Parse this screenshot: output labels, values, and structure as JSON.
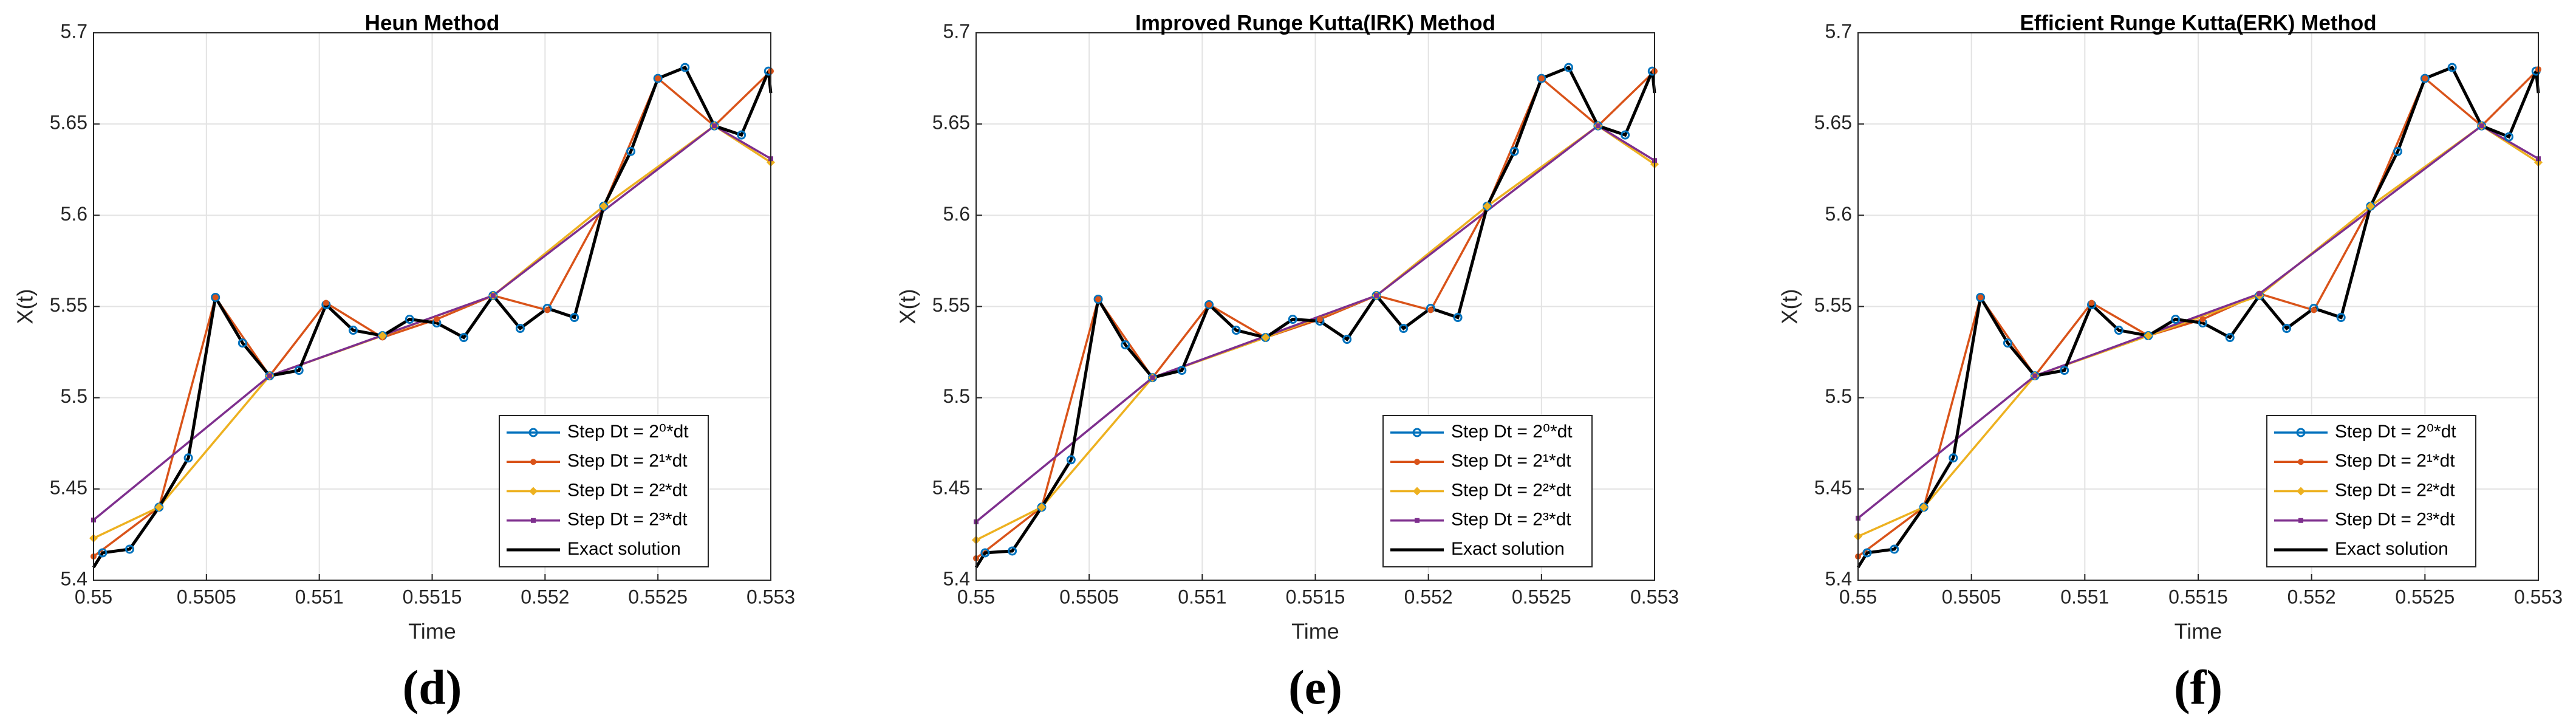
{
  "chart_data": [
    {
      "type": "line",
      "title": "Heun Method",
      "label": "(d)",
      "xlabel": "Time",
      "ylabel": "X(t)",
      "xlim": [
        0.55,
        0.553
      ],
      "xticks": [
        0.55,
        0.5505,
        0.551,
        0.5515,
        0.552,
        0.5525,
        0.553
      ],
      "ylim": [
        5.4,
        5.7
      ],
      "yticks": [
        5.4,
        5.45,
        5.5,
        5.55,
        5.6,
        5.65,
        5.7
      ],
      "grid": true,
      "legend": "southeast",
      "series": [
        {
          "name": "Step Dt = 2⁰*dt",
          "color": "#0072BD",
          "marker": "circle",
          "x": [
            0.55004,
            0.55016,
            0.55029,
            0.55042,
            0.55054,
            0.55066,
            0.55078,
            0.55091,
            0.55103,
            0.55115,
            0.55128,
            0.5514,
            0.55152,
            0.55164,
            0.55177,
            0.55189,
            0.55201,
            0.55213,
            0.55226,
            0.55238,
            0.5525,
            0.55262,
            0.55275,
            0.55287,
            0.55299
          ],
          "values": [
            5.415,
            5.417,
            5.44,
            5.467,
            5.555,
            5.53,
            5.512,
            5.515,
            5.551,
            5.537,
            5.534,
            5.543,
            5.541,
            5.533,
            5.556,
            5.538,
            5.549,
            5.544,
            5.605,
            5.635,
            5.675,
            5.681,
            5.649,
            5.644,
            5.679
          ]
        },
        {
          "name": "Step Dt = 2¹*dt",
          "color": "#D95319",
          "marker": "dot",
          "x": [
            0.55,
            0.55029,
            0.55054,
            0.55078,
            0.55103,
            0.55128,
            0.55152,
            0.55177,
            0.55201,
            0.55226,
            0.5525,
            0.55275,
            0.553
          ],
          "values": [
            5.413,
            5.44,
            5.555,
            5.512,
            5.552,
            5.533,
            5.543,
            5.556,
            5.548,
            5.605,
            5.675,
            5.649,
            5.679
          ]
        },
        {
          "name": "Step Dt = 2²*dt",
          "color": "#EDB120",
          "marker": "diamond",
          "x": [
            0.55,
            0.55029,
            0.55078,
            0.55128,
            0.55177,
            0.55226,
            0.55275,
            0.553
          ],
          "values": [
            5.423,
            5.44,
            5.512,
            5.534,
            5.556,
            5.605,
            5.649,
            5.629
          ]
        },
        {
          "name": "Step Dt = 2³*dt",
          "color": "#7E2F8E",
          "marker": "square",
          "x": [
            0.55,
            0.55078,
            0.55177,
            0.55275,
            0.553
          ],
          "values": [
            5.433,
            5.512,
            5.556,
            5.649,
            5.631
          ]
        },
        {
          "name": "Exact solution",
          "color": "#000000",
          "marker": "none",
          "x": [
            0.55,
            0.55004,
            0.55016,
            0.55029,
            0.55042,
            0.55054,
            0.55066,
            0.55078,
            0.55091,
            0.55103,
            0.55115,
            0.55128,
            0.5514,
            0.55152,
            0.55164,
            0.55177,
            0.55189,
            0.55201,
            0.55213,
            0.55226,
            0.55238,
            0.5525,
            0.55262,
            0.55275,
            0.55287,
            0.55299,
            0.553
          ],
          "values": [
            5.407,
            5.415,
            5.417,
            5.44,
            5.467,
            5.555,
            5.53,
            5.512,
            5.515,
            5.551,
            5.537,
            5.534,
            5.543,
            5.541,
            5.533,
            5.556,
            5.538,
            5.549,
            5.544,
            5.605,
            5.635,
            5.675,
            5.681,
            5.649,
            5.644,
            5.679,
            5.667
          ]
        }
      ]
    },
    {
      "type": "line",
      "title": "Improved Runge Kutta(IRK) Method",
      "label": "(e)",
      "xlabel": "Time",
      "ylabel": "X(t)",
      "xlim": [
        0.55,
        0.553
      ],
      "xticks": [
        0.55,
        0.5505,
        0.551,
        0.5515,
        0.552,
        0.5525,
        0.553
      ],
      "ylim": [
        5.4,
        5.7
      ],
      "yticks": [
        5.4,
        5.45,
        5.5,
        5.55,
        5.6,
        5.65,
        5.7
      ],
      "grid": true,
      "legend": "southeast",
      "series": [
        {
          "name": "Step Dt = 2⁰*dt",
          "color": "#0072BD",
          "marker": "circle",
          "x": [
            0.55004,
            0.55016,
            0.55029,
            0.55042,
            0.55054,
            0.55066,
            0.55078,
            0.55091,
            0.55103,
            0.55115,
            0.55128,
            0.5514,
            0.55152,
            0.55164,
            0.55177,
            0.55189,
            0.55201,
            0.55213,
            0.55226,
            0.55238,
            0.5525,
            0.55262,
            0.55275,
            0.55287,
            0.55299
          ],
          "values": [
            5.415,
            5.416,
            5.44,
            5.466,
            5.554,
            5.529,
            5.511,
            5.515,
            5.551,
            5.537,
            5.533,
            5.543,
            5.542,
            5.532,
            5.556,
            5.538,
            5.549,
            5.544,
            5.605,
            5.635,
            5.675,
            5.681,
            5.649,
            5.644,
            5.679
          ]
        },
        {
          "name": "Step Dt = 2¹*dt",
          "color": "#D95319",
          "marker": "dot",
          "x": [
            0.55,
            0.55029,
            0.55054,
            0.55078,
            0.55103,
            0.55128,
            0.55152,
            0.55177,
            0.55201,
            0.55226,
            0.5525,
            0.55275,
            0.553
          ],
          "values": [
            5.412,
            5.44,
            5.554,
            5.511,
            5.551,
            5.533,
            5.543,
            5.556,
            5.548,
            5.605,
            5.675,
            5.649,
            5.679
          ]
        },
        {
          "name": "Step Dt = 2²*dt",
          "color": "#EDB120",
          "marker": "diamond",
          "x": [
            0.55,
            0.55029,
            0.55078,
            0.55128,
            0.55177,
            0.55226,
            0.55275,
            0.553
          ],
          "values": [
            5.422,
            5.44,
            5.511,
            5.533,
            5.556,
            5.605,
            5.649,
            5.628
          ]
        },
        {
          "name": "Step Dt = 2³*dt",
          "color": "#7E2F8E",
          "marker": "square",
          "x": [
            0.55,
            0.55078,
            0.55177,
            0.55275,
            0.553
          ],
          "values": [
            5.432,
            5.511,
            5.556,
            5.649,
            5.63
          ]
        },
        {
          "name": "Exact solution",
          "color": "#000000",
          "marker": "none",
          "x": [
            0.55,
            0.55004,
            0.55016,
            0.55029,
            0.55042,
            0.55054,
            0.55066,
            0.55078,
            0.55091,
            0.55103,
            0.55115,
            0.55128,
            0.5514,
            0.55152,
            0.55164,
            0.55177,
            0.55189,
            0.55201,
            0.55213,
            0.55226,
            0.55238,
            0.5525,
            0.55262,
            0.55275,
            0.55287,
            0.55299,
            0.553
          ],
          "values": [
            5.407,
            5.415,
            5.416,
            5.44,
            5.466,
            5.554,
            5.529,
            5.511,
            5.515,
            5.551,
            5.537,
            5.533,
            5.543,
            5.542,
            5.532,
            5.556,
            5.538,
            5.549,
            5.544,
            5.605,
            5.635,
            5.675,
            5.681,
            5.649,
            5.644,
            5.679,
            5.667
          ]
        }
      ]
    },
    {
      "type": "line",
      "title": "Efficient Runge Kutta(ERK) Method",
      "label": "(f)",
      "xlabel": "Time",
      "ylabel": "X(t)",
      "xlim": [
        0.55,
        0.553
      ],
      "xticks": [
        0.55,
        0.5505,
        0.551,
        0.5515,
        0.552,
        0.5525,
        0.553
      ],
      "ylim": [
        5.4,
        5.7
      ],
      "yticks": [
        5.4,
        5.45,
        5.5,
        5.55,
        5.6,
        5.65,
        5.7
      ],
      "grid": true,
      "legend": "southeast",
      "series": [
        {
          "name": "Step Dt = 2⁰*dt",
          "color": "#0072BD",
          "marker": "circle",
          "x": [
            0.55004,
            0.55016,
            0.55029,
            0.55042,
            0.55054,
            0.55066,
            0.55078,
            0.55091,
            0.55103,
            0.55115,
            0.55128,
            0.5514,
            0.55152,
            0.55164,
            0.55177,
            0.55189,
            0.55201,
            0.55213,
            0.55226,
            0.55238,
            0.5525,
            0.55262,
            0.55275,
            0.55287,
            0.55299
          ],
          "values": [
            5.415,
            5.417,
            5.44,
            5.467,
            5.555,
            5.53,
            5.512,
            5.515,
            5.551,
            5.537,
            5.534,
            5.543,
            5.541,
            5.533,
            5.556,
            5.538,
            5.549,
            5.544,
            5.605,
            5.635,
            5.675,
            5.681,
            5.649,
            5.643,
            5.679
          ]
        },
        {
          "name": "Step Dt = 2¹*dt",
          "color": "#D95319",
          "marker": "dot",
          "x": [
            0.55,
            0.55029,
            0.55054,
            0.55078,
            0.55103,
            0.55128,
            0.55152,
            0.55177,
            0.55201,
            0.55226,
            0.5525,
            0.55275,
            0.553
          ],
          "values": [
            5.413,
            5.44,
            5.555,
            5.512,
            5.552,
            5.534,
            5.543,
            5.557,
            5.548,
            5.605,
            5.675,
            5.649,
            5.68
          ]
        },
        {
          "name": "Step Dt = 2²*dt",
          "color": "#EDB120",
          "marker": "diamond",
          "x": [
            0.55,
            0.55029,
            0.55078,
            0.55128,
            0.55177,
            0.55226,
            0.55275,
            0.553
          ],
          "values": [
            5.424,
            5.44,
            5.512,
            5.534,
            5.556,
            5.605,
            5.649,
            5.629
          ]
        },
        {
          "name": "Step Dt = 2³*dt",
          "color": "#7E2F8E",
          "marker": "square",
          "x": [
            0.55,
            0.55078,
            0.55177,
            0.55275,
            0.553
          ],
          "values": [
            5.434,
            5.512,
            5.557,
            5.649,
            5.631
          ]
        },
        {
          "name": "Exact solution",
          "color": "#000000",
          "marker": "none",
          "x": [
            0.55,
            0.55004,
            0.55016,
            0.55029,
            0.55042,
            0.55054,
            0.55066,
            0.55078,
            0.55091,
            0.55103,
            0.55115,
            0.55128,
            0.5514,
            0.55152,
            0.55164,
            0.55177,
            0.55189,
            0.55201,
            0.55213,
            0.55226,
            0.55238,
            0.5525,
            0.55262,
            0.55275,
            0.55287,
            0.55299,
            0.553
          ],
          "values": [
            5.407,
            5.415,
            5.417,
            5.44,
            5.467,
            5.555,
            5.53,
            5.512,
            5.515,
            5.551,
            5.537,
            5.534,
            5.543,
            5.541,
            5.533,
            5.556,
            5.538,
            5.549,
            5.544,
            5.605,
            5.635,
            5.675,
            5.681,
            5.649,
            5.643,
            5.679,
            5.667
          ]
        }
      ]
    }
  ]
}
